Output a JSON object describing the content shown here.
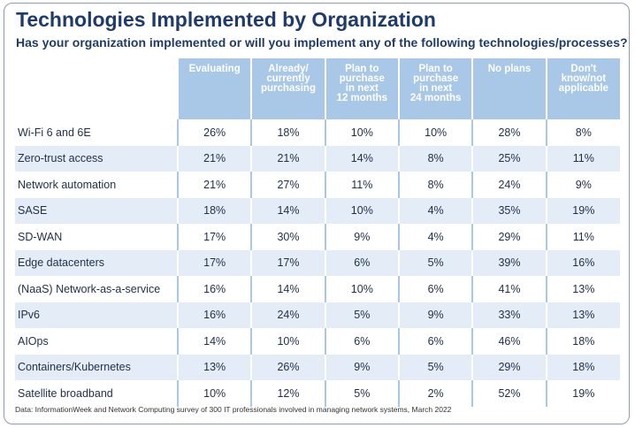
{
  "title": "Technologies Implemented by Organization",
  "subtitle": "Has your organization implemented or will you implement any of the following technologies/processes?",
  "source": "Data: InformationWeek and Network Computing survey of 300 IT professionals involved in managing network systems, March 2022",
  "colors": {
    "title": "#1f3b6b",
    "header_bg": "#a9c8e8",
    "band_bg": "#e4edf7"
  },
  "chart_data": {
    "type": "table",
    "columns": [
      "Evaluating",
      "Already/\ncurrently\npurchasing",
      "Plan to\npurchase\nin next\n12 months",
      "Plan to\npurchase\nin next\n24 months",
      "No plans",
      "Don't\nknow/not\napplicable"
    ],
    "rows": [
      {
        "label": "Wi-Fi 6 and 6E",
        "values": [
          "26%",
          "18%",
          "10%",
          "10%",
          "28%",
          "8%"
        ]
      },
      {
        "label": "Zero-trust access",
        "values": [
          "21%",
          "21%",
          "14%",
          "8%",
          "25%",
          "11%"
        ]
      },
      {
        "label": "Network automation",
        "values": [
          "21%",
          "27%",
          "11%",
          "8%",
          "24%",
          "9%"
        ]
      },
      {
        "label": "SASE",
        "values": [
          "18%",
          "14%",
          "10%",
          "4%",
          "35%",
          "19%"
        ]
      },
      {
        "label": "SD-WAN",
        "values": [
          "17%",
          "30%",
          "9%",
          "4%",
          "29%",
          "11%"
        ]
      },
      {
        "label": "Edge datacenters",
        "values": [
          "17%",
          "17%",
          "6%",
          "5%",
          "39%",
          "16%"
        ]
      },
      {
        "label": "(NaaS) Network-as-a-service",
        "values": [
          "16%",
          "14%",
          "10%",
          "6%",
          "41%",
          "13%"
        ]
      },
      {
        "label": "IPv6",
        "values": [
          "16%",
          "24%",
          "5%",
          "9%",
          "33%",
          "13%"
        ]
      },
      {
        "label": "AIOps",
        "values": [
          "14%",
          "10%",
          "6%",
          "6%",
          "46%",
          "18%"
        ]
      },
      {
        "label": "Containers/Kubernetes",
        "values": [
          "13%",
          "26%",
          "9%",
          "5%",
          "29%",
          "18%"
        ]
      },
      {
        "label": "Satellite broadband",
        "values": [
          "10%",
          "12%",
          "5%",
          "2%",
          "52%",
          "19%"
        ]
      }
    ]
  }
}
